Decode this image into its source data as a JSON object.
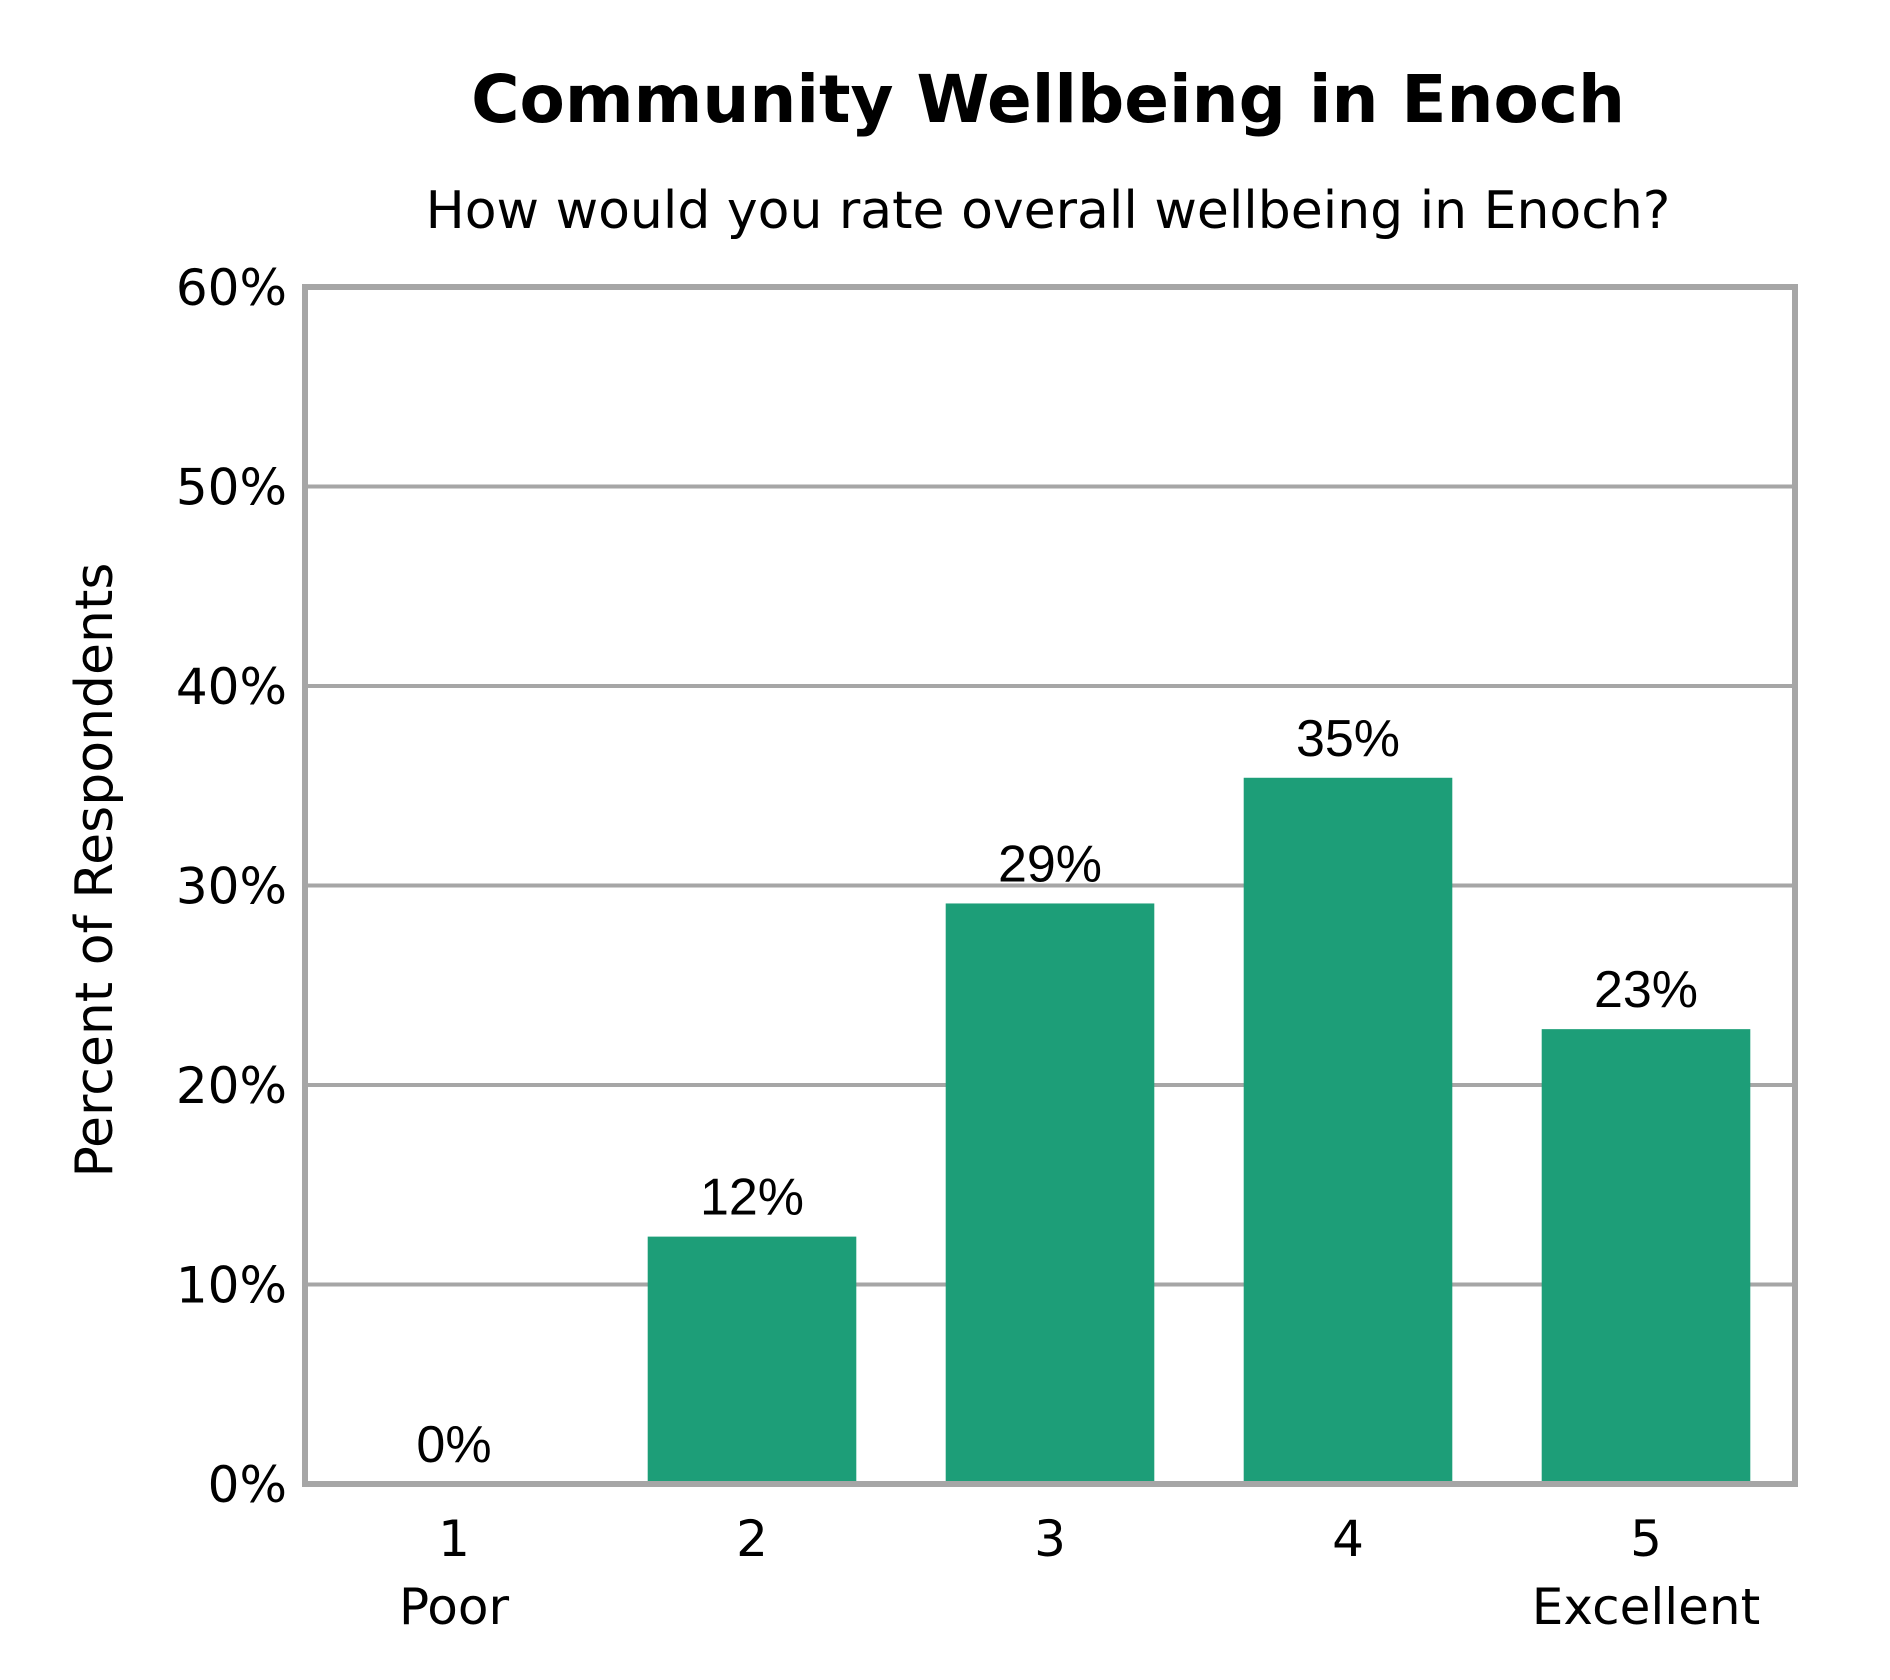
{
  "chart_data": {
    "type": "bar",
    "title": "Community Wellbeing in Enoch",
    "subtitle": "How would you rate overall wellbeing in Enoch?",
    "ylabel": "Percent of Respondents",
    "xlabel": "",
    "categories": [
      "1",
      "2",
      "3",
      "4",
      "5"
    ],
    "category_sublabels": [
      "Poor",
      "",
      "",
      "",
      "Excellent"
    ],
    "values": [
      0,
      12.4,
      29.1,
      35.4,
      22.8
    ],
    "data_labels": [
      "0%",
      "12%",
      "29%",
      "35%",
      "23%"
    ],
    "ylim": [
      0,
      60
    ],
    "yticks": [
      0,
      10,
      20,
      30,
      40,
      50,
      60
    ],
    "ytick_labels": [
      "0%",
      "10%",
      "20%",
      "30%",
      "40%",
      "50%",
      "60%"
    ],
    "grid": true,
    "legend": "none",
    "bar_color": "#1d9e78",
    "grid_color": "#a6a6a6"
  }
}
